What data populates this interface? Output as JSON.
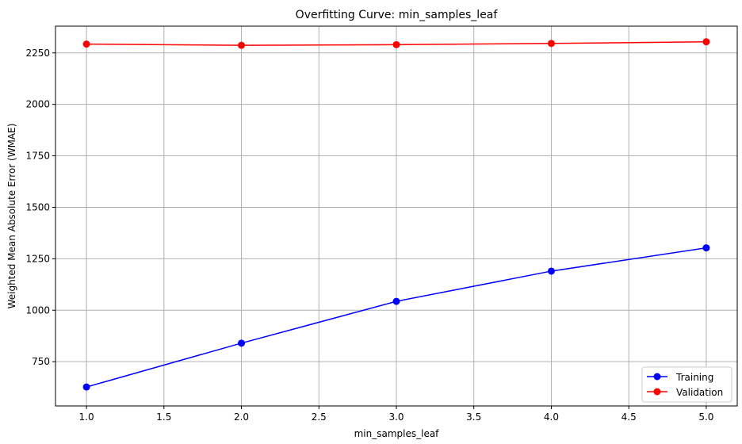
{
  "chart_data": {
    "type": "line",
    "title": "Overfitting Curve: min_samples_leaf",
    "xlabel": "min_samples_leaf",
    "ylabel": "Weighted Mean Absolute Error (WMAE)",
    "x": [
      1,
      2,
      3,
      4,
      5
    ],
    "xlim": [
      0.8,
      5.2
    ],
    "ylim": [
      535,
      2380
    ],
    "xticks": [
      1.0,
      1.5,
      2.0,
      2.5,
      3.0,
      3.5,
      4.0,
      4.5,
      5.0
    ],
    "xtick_labels": [
      "1.0",
      "1.5",
      "2.0",
      "2.5",
      "3.0",
      "3.5",
      "4.0",
      "4.5",
      "5.0"
    ],
    "yticks": [
      750,
      1000,
      1250,
      1500,
      1750,
      2000,
      2250
    ],
    "ytick_labels": [
      "750",
      "1000",
      "1250",
      "1500",
      "1750",
      "2000",
      "2250"
    ],
    "grid": true,
    "legend_position": "lower-right",
    "series": [
      {
        "name": "Training",
        "color": "#0000ff",
        "marker": "circle",
        "values": [
          627,
          840,
          1043,
          1190,
          1303
        ]
      },
      {
        "name": "Validation",
        "color": "#ff0000",
        "marker": "circle",
        "values": [
          2293,
          2287,
          2290,
          2296,
          2304
        ]
      }
    ]
  }
}
